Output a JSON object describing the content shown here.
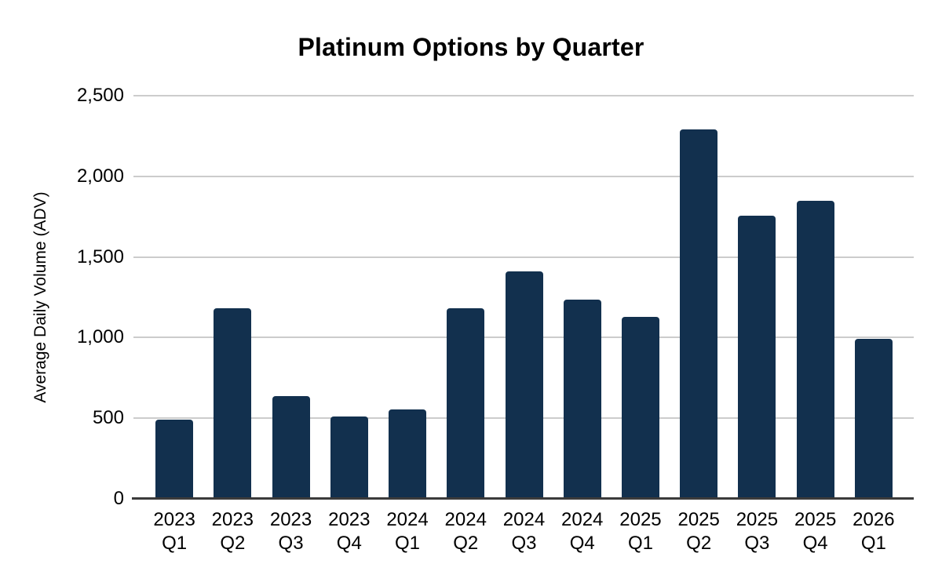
{
  "chart_data": {
    "type": "bar",
    "title": "Platinum Options by Quarter",
    "ylabel": "Average Daily Volume (ADV)",
    "xlabel": "",
    "categories": [
      "2023 Q1",
      "2023 Q2",
      "2023 Q3",
      "2023 Q4",
      "2024 Q1",
      "2024 Q2",
      "2024 Q3",
      "2024 Q4",
      "2025 Q1",
      "2025 Q2",
      "2025 Q3",
      "2025 Q4",
      "2026 Q1"
    ],
    "values": [
      490,
      1180,
      635,
      510,
      555,
      1180,
      1410,
      1235,
      1130,
      2290,
      1755,
      1850,
      990
    ],
    "series_name": "Average Daily Volume (ADV)",
    "ylim": [
      0,
      2500
    ],
    "yticks": [
      0,
      500,
      1000,
      1500,
      2000,
      2500
    ],
    "ytick_labels": [
      "0",
      "500",
      "1,000",
      "1,500",
      "2,000",
      "2,500"
    ],
    "grid": "horizontal",
    "legend": "none",
    "colors": {
      "bar": "#12304E",
      "gridline": "#CCCCCC",
      "axis_line": "#3B3B3B",
      "text": "#000000"
    }
  }
}
